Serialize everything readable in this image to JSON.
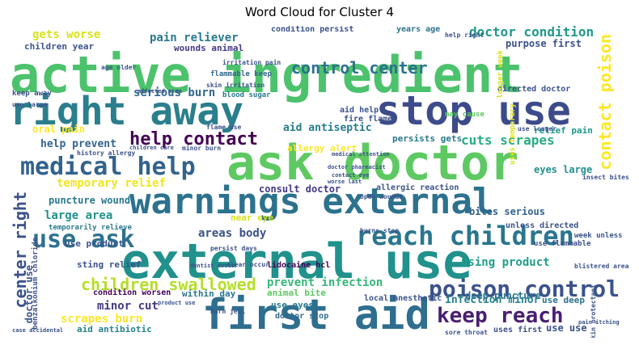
{
  "title": "Word Cloud for Cluster 4",
  "words": {
    "active_ingredient": "active ingredient",
    "right_away": "right away",
    "stop_use": "stop use",
    "ask_doctor": "ask doctor",
    "warnings_external": "warnings external",
    "external_use": "external use",
    "first_aid": "first aid",
    "medical_help": "medical help",
    "use_ask": "use ask",
    "reach_children": "reach children",
    "poison_control": "poison control",
    "keep_reach": "keep reach",
    "children_swallowed": "children swallowed",
    "control_center": "control center",
    "help_contact": "help contact",
    "contact_poison": "contact poison",
    "center_right": "center right",
    "doctor_condition": "doctor condition",
    "gets_worse": "gets worse",
    "pain_reliever": "pain reliever",
    "cuts_scrapes": "cuts scrapes",
    "temporary_relief": "temporary relief",
    "large_area": "large area",
    "areas_body": "areas body",
    "minor_cut": "minor cut",
    "scrapes_burn": "scrapes burn",
    "prevent_infection": "prevent infection",
    "infection_minor": "infection minor",
    "using_product": "using product",
    "serious_burn": "serious burn",
    "aid_antiseptic": "aid antiseptic",
    "help_prevent": "help prevent",
    "puncture_wound": "puncture wound",
    "consult_doctor": "consult doctor",
    "bites_serious": "bites serious",
    "deep_puncture": "deep puncture",
    "relief_pain": "relief pain",
    "eyes_large": "eyes large",
    "allergy_alert": "allergy alert",
    "persists_gets": "persists gets",
    "oral_pain": "oral pain",
    "purpose_first": "purpose first",
    "children_year": "children year",
    "wounds_animal": "wounds animal",
    "condition_persist": "condition persist",
    "years_age": "years age",
    "use_product": "use product",
    "sting_relief": "sting relief",
    "condition_worsen": "condition worsen",
    "within_day": "within day",
    "animal_bite": "animal bite",
    "use_eyes": "use eyes",
    "doctor_stop": "doctor stop",
    "aid_antibiotic": "aid antibiotic",
    "uses_first": "uses first",
    "use_use": "use use",
    "use_deep": "use deep",
    "lidocaine_hcl": "lidocaine hcl",
    "near_eye": "near eye",
    "allergic_reaction": "allergic reaction",
    "local_anesthetic": "local anesthetic",
    "doctor_use": "doctor use",
    "directed_doctor": "directed doctor",
    "aid_help": "aid help",
    "fire_flame": "fire flame",
    "unless_directed": "unless directed",
    "temporarily_relieve": "temporarily relieve",
    "flammable_keep": "flammable keep",
    "blood_sugar": "blood sugar",
    "keep_away": "keep away",
    "may_cause": "may cause",
    "use_large": "use large",
    "skin_irritation": "skin irritation",
    "irritation_pain": "irritation pain",
    "flame_use": "flame use",
    "minor_burn": "minor burn",
    "use_longer": "use longer",
    "week_unless": "week unless",
    "use_flammable": "use flammable",
    "blistered_area": "blistered area",
    "persist_days": "persist days",
    "clear_occur": "clear occur",
    "burn_jell": "burn jell",
    "sore_throat": "sore throat",
    "history_allergy": "history allergy",
    "age_older": "age older",
    "help_right": "help right",
    "open_wounds": "open wounds",
    "burns_stop": "burns stop",
    "insect_bites": "insect bites",
    "dentist_doctor": "dentist doctor",
    "benzalkonium_chloride": "benzalkonium chloride",
    "medical_attention": "medical attention",
    "doctor_pharmacist": "doctor pharmacist",
    "contact_eye": "contact eye",
    "worse_last": "worse last",
    "children_care": "children care",
    "product_use": "product use",
    "case_accidental": "case accidental",
    "affected_area": "affected area",
    "pain_itching": "pain itching",
    "longer_week": "longer week",
    "uses_temporary": "uses temporary",
    "skin_protectant": "skin protectant"
  }
}
